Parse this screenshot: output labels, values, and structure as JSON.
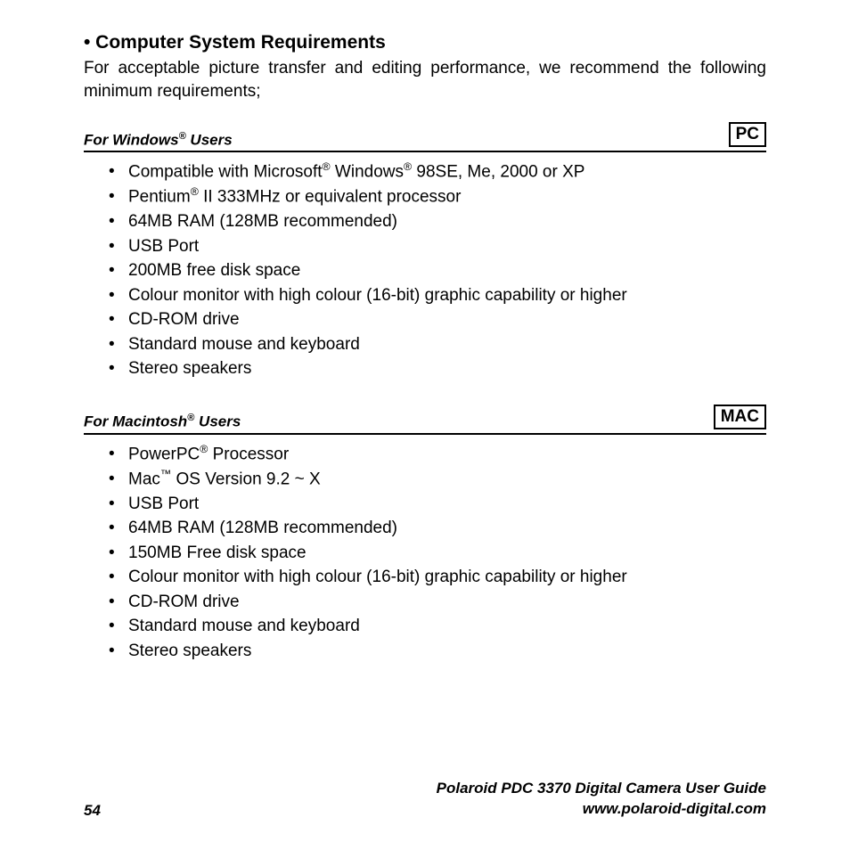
{
  "heading": "• Computer System Requirements",
  "intro": "For acceptable picture transfer and editing performance, we recommend the following minimum requirements;",
  "windows": {
    "label_html": "For Windows<span class='sup'>®</span> Users",
    "badge": "PC",
    "items_html": [
      "Compatible with Microsoft<span class='sup'>®</span> Windows<span class='sup'>®</span> 98SE, Me, 2000 or XP",
      "Pentium<span class='sup'>®</span> II 333MHz or equivalent processor",
      "64MB RAM (128MB recommended)",
      "USB Port",
      "200MB free disk space",
      "Colour monitor with high colour (16-bit) graphic capability or higher",
      "CD-ROM drive",
      "Standard mouse and keyboard",
      "Stereo speakers"
    ]
  },
  "mac": {
    "label_html": "For Macintosh<span class='sup'>®</span> Users",
    "badge": "MAC",
    "items_html": [
      "PowerPC<span class='sup'>®</span> Processor",
      "Mac<span class='sup'>™</span> OS Version 9.2 ~ X",
      "USB Port",
      "64MB RAM (128MB recommended)",
      "150MB Free disk space",
      "Colour monitor with high colour (16-bit) graphic capability or higher",
      "CD-ROM drive",
      "Standard mouse and keyboard",
      "Stereo speakers"
    ]
  },
  "footer": {
    "page": "54",
    "title": "Polaroid PDC 3370 Digital Camera User Guide",
    "url": "www.polaroid-digital.com"
  },
  "colors": {
    "text": "#000000",
    "background": "#ffffff",
    "border": "#000000"
  },
  "fontsizes": {
    "heading": 21,
    "body": 19,
    "platform_label": 17,
    "footer": 17
  }
}
